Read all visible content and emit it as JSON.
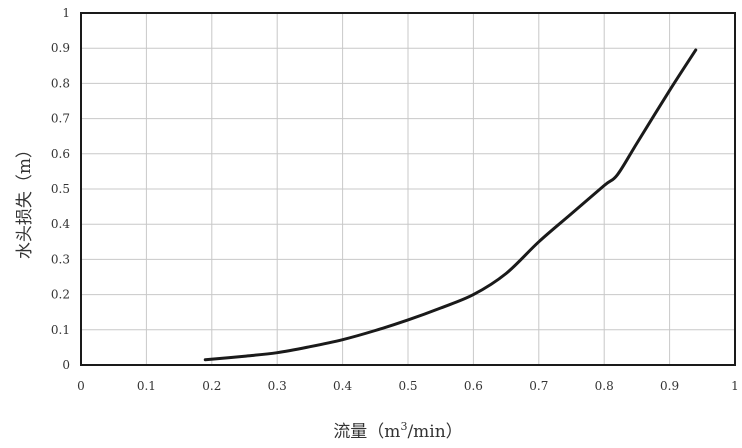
{
  "chart_data": {
    "type": "line",
    "ylabel": "水头损失（m）",
    "xlabel_parts": {
      "prefix": "流量（m",
      "superscript": "3",
      "suffix": "/min）"
    },
    "xlim": [
      0,
      1
    ],
    "ylim": [
      0,
      1
    ],
    "x_ticks": [
      "0",
      "0.1",
      "0.2",
      "0.3",
      "0.4",
      "0.5",
      "0.6",
      "0.7",
      "0.8",
      "0.9",
      "1"
    ],
    "y_ticks": [
      "0",
      "0.1",
      "0.2",
      "0.3",
      "0.4",
      "0.5",
      "0.6",
      "0.7",
      "0.8",
      "0.9",
      "1"
    ],
    "grid": true,
    "series": [
      {
        "x": [
          0.19,
          0.25,
          0.3,
          0.35,
          0.4,
          0.45,
          0.5,
          0.55,
          0.6,
          0.65,
          0.7,
          0.75,
          0.8,
          0.82,
          0.85,
          0.9,
          0.94
        ],
        "y": [
          0.015,
          0.025,
          0.035,
          0.052,
          0.072,
          0.098,
          0.128,
          0.162,
          0.2,
          0.26,
          0.35,
          0.43,
          0.51,
          0.54,
          0.63,
          0.78,
          0.895
        ],
        "color": "#1a1a1a"
      }
    ]
  }
}
